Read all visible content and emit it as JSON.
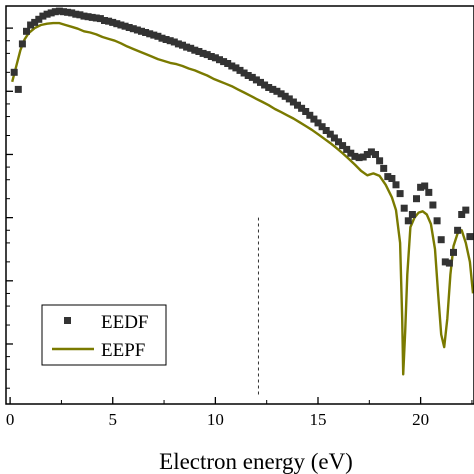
{
  "chart_data": {
    "type": "scatter",
    "title": "",
    "xlabel": "Electron energy (eV)",
    "ylabel": "",
    "yscale": "log",
    "xlim": [
      -0.2,
      22.6
    ],
    "ylim": [
      -5.95,
      0.35
    ],
    "x_ticks": [
      0,
      5,
      10,
      15,
      20
    ],
    "x_tick_labels": [
      "0",
      "5",
      "10",
      "15",
      "20"
    ],
    "y_tick_logs": [
      0,
      -1,
      -2,
      -3,
      -4,
      -5
    ],
    "legend": {
      "position": "bottom-left",
      "entries": [
        "EEDF",
        "EEPF"
      ]
    },
    "annotations": [
      {
        "type": "dashed-vertical-line",
        "x": 12.1,
        "y_from_log": -5.8,
        "y_to_log": -3.0
      }
    ],
    "series": [
      {
        "name": "EEDF",
        "style": "square-markers",
        "color": "#333333",
        "points": [
          [
            0.2,
            -0.7
          ],
          [
            0.4,
            -0.97
          ],
          [
            0.6,
            -0.25
          ],
          [
            0.8,
            -0.05
          ],
          [
            1.0,
            0.05
          ],
          [
            1.2,
            0.09
          ],
          [
            1.4,
            0.14
          ],
          [
            1.6,
            0.19
          ],
          [
            1.8,
            0.22
          ],
          [
            2.0,
            0.24
          ],
          [
            2.2,
            0.26
          ],
          [
            2.4,
            0.27
          ],
          [
            2.6,
            0.26
          ],
          [
            2.8,
            0.25
          ],
          [
            3.0,
            0.24
          ],
          [
            3.2,
            0.22
          ],
          [
            3.4,
            0.21
          ],
          [
            3.6,
            0.19
          ],
          [
            3.8,
            0.18
          ],
          [
            4.0,
            0.17
          ],
          [
            4.2,
            0.16
          ],
          [
            4.4,
            0.15
          ],
          [
            4.6,
            0.12
          ],
          [
            4.8,
            0.11
          ],
          [
            5.0,
            0.09
          ],
          [
            5.2,
            0.07
          ],
          [
            5.4,
            0.05
          ],
          [
            5.6,
            0.03
          ],
          [
            5.8,
            0.01
          ],
          [
            6.0,
            -0.01
          ],
          [
            6.2,
            -0.03
          ],
          [
            6.4,
            -0.05
          ],
          [
            6.6,
            -0.07
          ],
          [
            6.8,
            -0.09
          ],
          [
            7.0,
            -0.11
          ],
          [
            7.2,
            -0.13
          ],
          [
            7.4,
            -0.16
          ],
          [
            7.6,
            -0.18
          ],
          [
            7.8,
            -0.2
          ],
          [
            8.0,
            -0.22
          ],
          [
            8.2,
            -0.25
          ],
          [
            8.4,
            -0.27
          ],
          [
            8.6,
            -0.3
          ],
          [
            8.8,
            -0.32
          ],
          [
            9.0,
            -0.35
          ],
          [
            9.2,
            -0.37
          ],
          [
            9.4,
            -0.4
          ],
          [
            9.6,
            -0.42
          ],
          [
            9.8,
            -0.45
          ],
          [
            10.0,
            -0.47
          ],
          [
            10.2,
            -0.5
          ],
          [
            10.4,
            -0.53
          ],
          [
            10.6,
            -0.56
          ],
          [
            10.8,
            -0.6
          ],
          [
            11.0,
            -0.63
          ],
          [
            11.2,
            -0.67
          ],
          [
            11.4,
            -0.71
          ],
          [
            11.6,
            -0.75
          ],
          [
            11.8,
            -0.78
          ],
          [
            12.0,
            -0.82
          ],
          [
            12.2,
            -0.86
          ],
          [
            12.4,
            -0.9
          ],
          [
            12.6,
            -0.94
          ],
          [
            12.8,
            -0.97
          ],
          [
            13.0,
            -1.0
          ],
          [
            13.2,
            -1.04
          ],
          [
            13.4,
            -1.08
          ],
          [
            13.6,
            -1.12
          ],
          [
            13.8,
            -1.17
          ],
          [
            14.0,
            -1.22
          ],
          [
            14.2,
            -1.27
          ],
          [
            14.4,
            -1.32
          ],
          [
            14.6,
            -1.38
          ],
          [
            14.8,
            -1.44
          ],
          [
            15.0,
            -1.5
          ],
          [
            15.2,
            -1.56
          ],
          [
            15.4,
            -1.62
          ],
          [
            15.6,
            -1.68
          ],
          [
            15.8,
            -1.74
          ],
          [
            16.0,
            -1.8
          ],
          [
            16.2,
            -1.86
          ],
          [
            16.4,
            -1.92
          ],
          [
            16.6,
            -1.98
          ],
          [
            16.8,
            -2.03
          ],
          [
            17.0,
            -2.05
          ],
          [
            17.2,
            -2.04
          ],
          [
            17.4,
            -2.0
          ],
          [
            17.6,
            -1.96
          ],
          [
            17.8,
            -2.0
          ],
          [
            18.0,
            -2.1
          ],
          [
            18.2,
            -2.22
          ],
          [
            18.4,
            -2.35
          ],
          [
            18.6,
            -2.38
          ],
          [
            18.8,
            -2.48
          ],
          [
            19.0,
            -2.62
          ],
          [
            19.2,
            -2.85
          ],
          [
            19.4,
            -3.05
          ],
          [
            19.6,
            -2.95
          ],
          [
            19.8,
            -2.7
          ],
          [
            20.0,
            -2.52
          ],
          [
            20.2,
            -2.5
          ],
          [
            20.4,
            -2.6
          ],
          [
            20.6,
            -2.8
          ],
          [
            20.8,
            -3.05
          ],
          [
            21.0,
            -3.35
          ],
          [
            21.2,
            -3.7
          ],
          [
            21.4,
            -3.72
          ],
          [
            21.6,
            -3.55
          ],
          [
            21.8,
            -3.2
          ],
          [
            22.0,
            -2.95
          ],
          [
            22.2,
            -2.88
          ],
          [
            22.4,
            -3.3
          ]
        ]
      },
      {
        "name": "EEPF",
        "style": "line",
        "color": "#7a7a00",
        "points": [
          [
            0.1,
            -0.85
          ],
          [
            0.3,
            -0.6
          ],
          [
            0.5,
            -0.35
          ],
          [
            0.7,
            -0.18
          ],
          [
            0.9,
            -0.08
          ],
          [
            1.2,
            0.0
          ],
          [
            1.5,
            0.05
          ],
          [
            1.8,
            0.07
          ],
          [
            2.1,
            0.08
          ],
          [
            2.4,
            0.08
          ],
          [
            2.7,
            0.05
          ],
          [
            3.0,
            0.02
          ],
          [
            3.3,
            -0.01
          ],
          [
            3.6,
            -0.05
          ],
          [
            3.9,
            -0.07
          ],
          [
            4.2,
            -0.1
          ],
          [
            4.5,
            -0.14
          ],
          [
            4.8,
            -0.17
          ],
          [
            5.1,
            -0.2
          ],
          [
            5.4,
            -0.24
          ],
          [
            5.7,
            -0.29
          ],
          [
            6.0,
            -0.33
          ],
          [
            6.3,
            -0.37
          ],
          [
            6.6,
            -0.41
          ],
          [
            6.9,
            -0.45
          ],
          [
            7.2,
            -0.49
          ],
          [
            7.5,
            -0.52
          ],
          [
            7.8,
            -0.55
          ],
          [
            8.1,
            -0.57
          ],
          [
            8.4,
            -0.6
          ],
          [
            8.7,
            -0.64
          ],
          [
            9.0,
            -0.67
          ],
          [
            9.3,
            -0.71
          ],
          [
            9.6,
            -0.75
          ],
          [
            9.9,
            -0.8
          ],
          [
            10.2,
            -0.84
          ],
          [
            10.5,
            -0.88
          ],
          [
            10.8,
            -0.92
          ],
          [
            11.1,
            -0.97
          ],
          [
            11.4,
            -1.02
          ],
          [
            11.7,
            -1.07
          ],
          [
            12.0,
            -1.12
          ],
          [
            12.3,
            -1.17
          ],
          [
            12.6,
            -1.22
          ],
          [
            12.9,
            -1.28
          ],
          [
            13.2,
            -1.33
          ],
          [
            13.5,
            -1.38
          ],
          [
            13.8,
            -1.43
          ],
          [
            14.1,
            -1.49
          ],
          [
            14.4,
            -1.55
          ],
          [
            14.7,
            -1.61
          ],
          [
            15.0,
            -1.68
          ],
          [
            15.3,
            -1.75
          ],
          [
            15.6,
            -1.82
          ],
          [
            15.9,
            -1.9
          ],
          [
            16.2,
            -1.98
          ],
          [
            16.5,
            -2.07
          ],
          [
            16.8,
            -2.16
          ],
          [
            17.1,
            -2.26
          ],
          [
            17.4,
            -2.33
          ],
          [
            17.7,
            -2.3
          ],
          [
            18.0,
            -2.34
          ],
          [
            18.3,
            -2.48
          ],
          [
            18.6,
            -2.68
          ],
          [
            18.8,
            -2.88
          ],
          [
            19.0,
            -3.4
          ],
          [
            19.1,
            -4.6
          ],
          [
            19.15,
            -5.48
          ],
          [
            19.25,
            -4.8
          ],
          [
            19.35,
            -3.9
          ],
          [
            19.5,
            -3.15
          ],
          [
            19.7,
            -3.0
          ],
          [
            19.9,
            -2.92
          ],
          [
            20.1,
            -2.9
          ],
          [
            20.3,
            -2.95
          ],
          [
            20.5,
            -3.1
          ],
          [
            20.7,
            -3.5
          ],
          [
            20.85,
            -4.2
          ],
          [
            21.0,
            -4.85
          ],
          [
            21.15,
            -5.05
          ],
          [
            21.3,
            -4.6
          ],
          [
            21.45,
            -3.9
          ],
          [
            21.6,
            -3.45
          ],
          [
            21.8,
            -3.25
          ],
          [
            22.0,
            -3.2
          ],
          [
            22.2,
            -3.4
          ],
          [
            22.4,
            -3.7
          ],
          [
            22.55,
            -4.2
          ]
        ]
      }
    ]
  }
}
